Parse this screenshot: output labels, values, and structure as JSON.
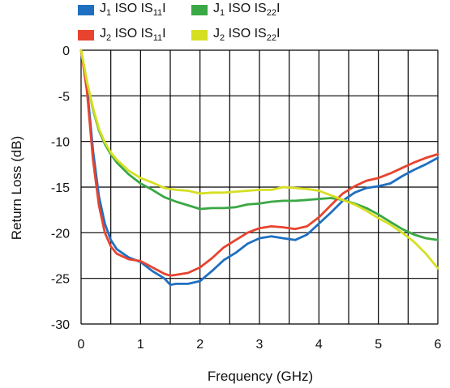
{
  "chart_data": {
    "type": "line",
    "title": "",
    "xlabel": "Frequency (GHz)",
    "ylabel": "Return Loss (dB)",
    "xlim": [
      0,
      6
    ],
    "ylim": [
      -30,
      0
    ],
    "x_ticks": [
      0,
      1,
      2,
      3,
      4,
      5,
      6
    ],
    "y_ticks": [
      0,
      -5,
      -10,
      -15,
      -20,
      -25,
      -30
    ],
    "grid": true,
    "legend_position": "top",
    "legend": [
      {
        "prefix": "J",
        "prefix_sub": "1",
        "middle": " ISO IS",
        "sub": "11",
        "suffix": "I",
        "color": "#1f6fc0"
      },
      {
        "prefix": "J",
        "prefix_sub": "1",
        "middle": " ISO IS",
        "sub": "22",
        "suffix": "I",
        "color": "#3aa845"
      },
      {
        "prefix": "J",
        "prefix_sub": "2",
        "middle": " ISO IS",
        "sub": "11",
        "suffix": "I",
        "color": "#e8432f"
      },
      {
        "prefix": "J",
        "prefix_sub": "2",
        "middle": " ISO IS",
        "sub": "22",
        "suffix": "I",
        "color": "#d6df22"
      }
    ],
    "series": [
      {
        "name": "J1 ISO IS11I",
        "color": "#1f6fc0",
        "x": [
          0,
          0.1,
          0.2,
          0.3,
          0.4,
          0.5,
          0.6,
          0.8,
          1.0,
          1.2,
          1.4,
          1.5,
          1.6,
          1.8,
          2.0,
          2.2,
          2.4,
          2.6,
          2.8,
          3.0,
          3.2,
          3.4,
          3.6,
          3.8,
          4.0,
          4.2,
          4.4,
          4.6,
          4.8,
          5.0,
          5.2,
          5.4,
          5.6,
          5.8,
          6.0
        ],
        "y": [
          0,
          -4,
          -11,
          -16,
          -19,
          -20.8,
          -21.8,
          -22.7,
          -23.2,
          -24.2,
          -25.0,
          -25.7,
          -25.6,
          -25.6,
          -25.3,
          -24.2,
          -23.0,
          -22.2,
          -21.2,
          -20.6,
          -20.4,
          -20.6,
          -20.8,
          -20.2,
          -19.0,
          -17.8,
          -16.5,
          -15.6,
          -15.1,
          -14.9,
          -14.6,
          -13.8,
          -13.1,
          -12.5,
          -11.8
        ]
      },
      {
        "name": "J1 ISO IS22I",
        "color": "#3aa845",
        "x": [
          0,
          0.1,
          0.2,
          0.3,
          0.4,
          0.5,
          0.6,
          0.8,
          1.0,
          1.2,
          1.4,
          1.6,
          1.8,
          2.0,
          2.2,
          2.4,
          2.6,
          2.8,
          3.0,
          3.2,
          3.4,
          3.6,
          3.8,
          4.0,
          4.2,
          4.4,
          4.6,
          4.8,
          5.0,
          5.2,
          5.4,
          5.6,
          5.8,
          6.0
        ],
        "y": [
          0,
          -3.5,
          -6.5,
          -8.8,
          -10.3,
          -11.4,
          -12.3,
          -13.6,
          -14.6,
          -15.3,
          -16.1,
          -16.6,
          -17.0,
          -17.4,
          -17.3,
          -17.3,
          -17.2,
          -16.9,
          -16.8,
          -16.6,
          -16.5,
          -16.5,
          -16.4,
          -16.3,
          -16.2,
          -16.4,
          -16.8,
          -17.3,
          -18.0,
          -18.8,
          -19.6,
          -20.2,
          -20.6,
          -20.8
        ]
      },
      {
        "name": "J2 ISO IS11I",
        "color": "#e8432f",
        "x": [
          0,
          0.1,
          0.2,
          0.3,
          0.4,
          0.5,
          0.6,
          0.8,
          1.0,
          1.2,
          1.4,
          1.5,
          1.6,
          1.8,
          2.0,
          2.2,
          2.4,
          2.6,
          2.8,
          3.0,
          3.2,
          3.4,
          3.6,
          3.8,
          4.0,
          4.2,
          4.4,
          4.6,
          4.8,
          5.0,
          5.2,
          5.4,
          5.6,
          5.8,
          6.0
        ],
        "y": [
          0,
          -4.5,
          -12,
          -17,
          -20,
          -21.5,
          -22.3,
          -22.9,
          -23.1,
          -23.8,
          -24.5,
          -24.7,
          -24.6,
          -24.4,
          -23.8,
          -22.8,
          -21.6,
          -20.8,
          -20.0,
          -19.5,
          -19.3,
          -19.4,
          -19.6,
          -19.3,
          -18.3,
          -17.0,
          -15.7,
          -14.9,
          -14.3,
          -14.0,
          -13.5,
          -12.9,
          -12.3,
          -11.8,
          -11.4
        ]
      },
      {
        "name": "J2 ISO IS22I",
        "color": "#d6df22",
        "x": [
          0,
          0.1,
          0.2,
          0.3,
          0.4,
          0.5,
          0.6,
          0.8,
          1.0,
          1.2,
          1.4,
          1.6,
          1.8,
          2.0,
          2.2,
          2.4,
          2.6,
          2.8,
          3.0,
          3.2,
          3.4,
          3.6,
          3.8,
          4.0,
          4.2,
          4.4,
          4.6,
          4.8,
          5.0,
          5.2,
          5.4,
          5.6,
          5.8,
          6.0
        ],
        "y": [
          0,
          -3.5,
          -6.3,
          -8.6,
          -10.1,
          -11.2,
          -12.0,
          -13.2,
          -14.0,
          -14.5,
          -15.1,
          -15.3,
          -15.4,
          -15.7,
          -15.6,
          -15.6,
          -15.5,
          -15.4,
          -15.3,
          -15.3,
          -15.0,
          -15.1,
          -15.2,
          -15.4,
          -15.9,
          -16.4,
          -16.9,
          -17.6,
          -18.4,
          -19.1,
          -20.0,
          -21.0,
          -22.3,
          -23.9
        ]
      }
    ]
  }
}
